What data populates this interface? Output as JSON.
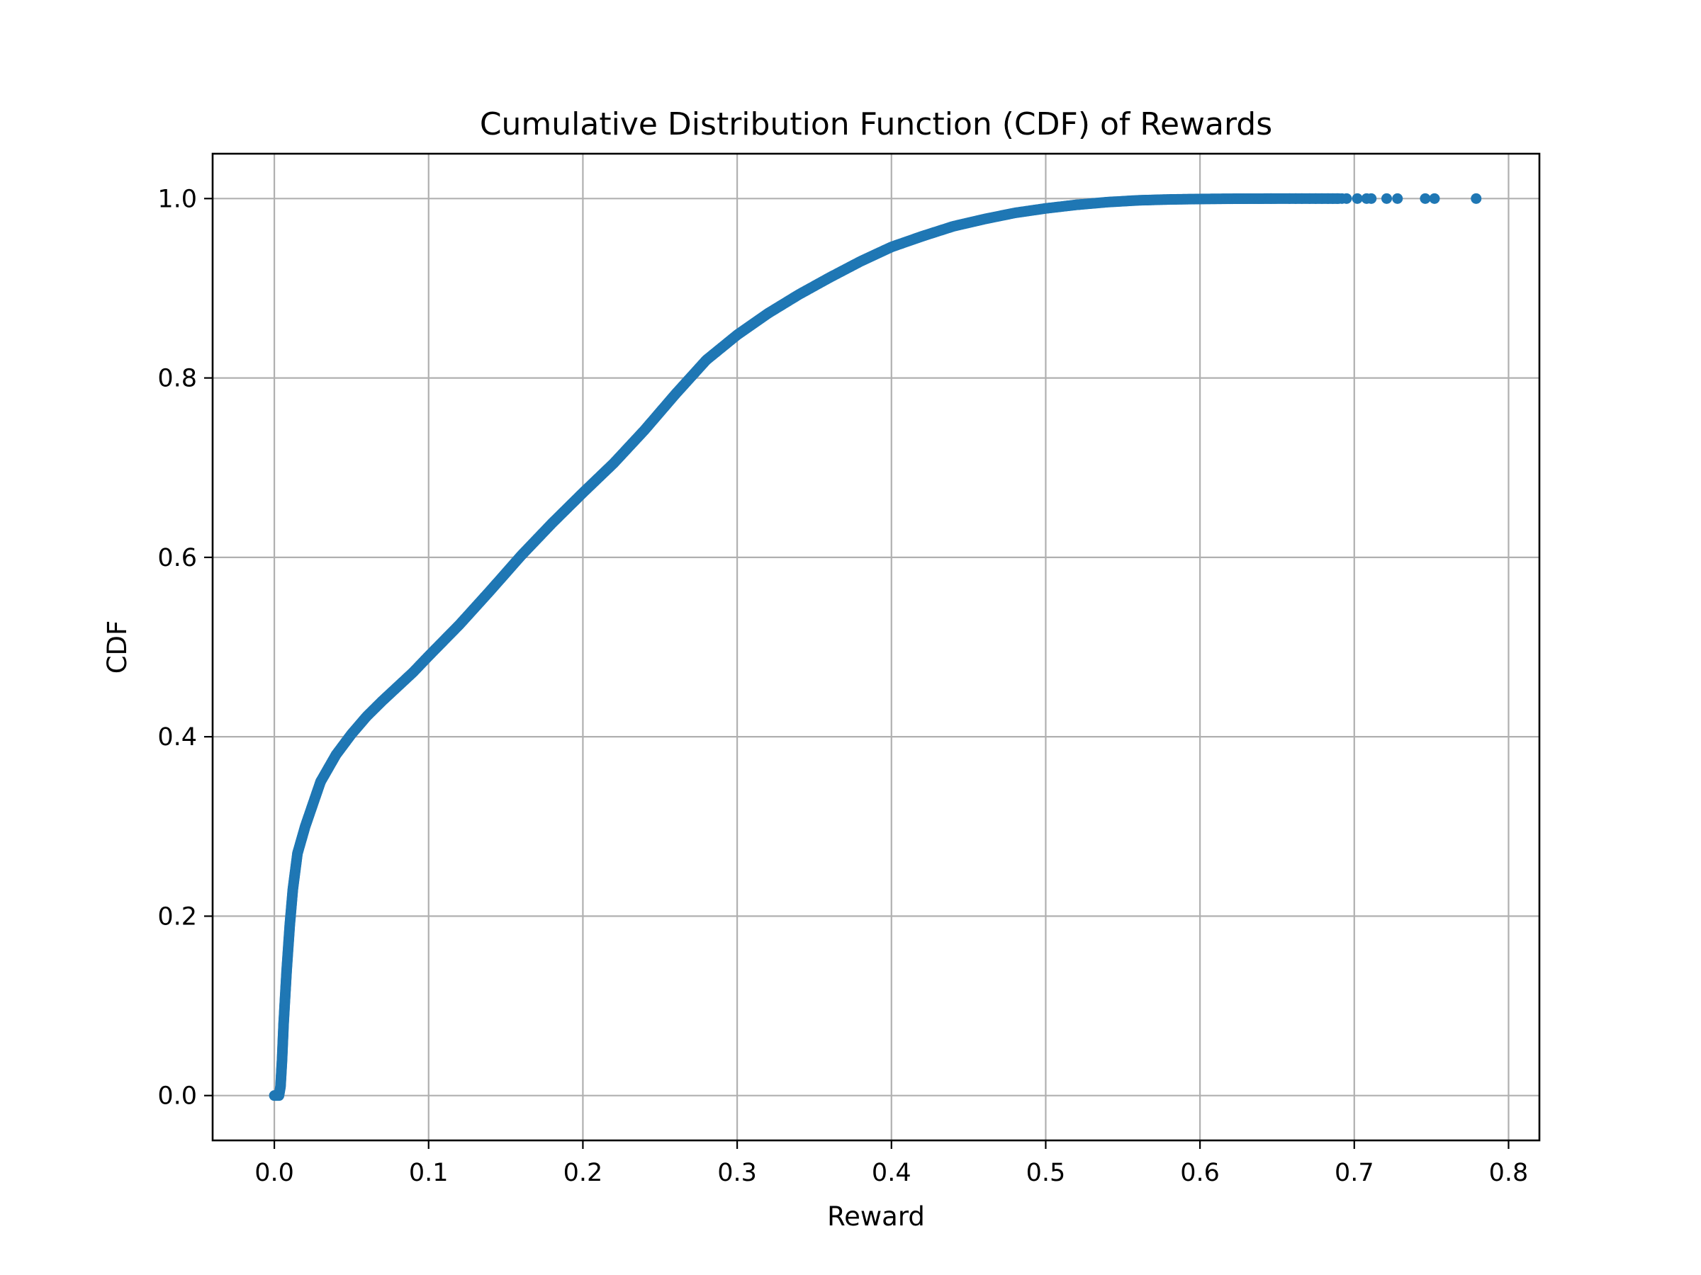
{
  "chart_data": {
    "type": "scatter",
    "title": "Cumulative Distribution Function (CDF) of Rewards",
    "xlabel": "Reward",
    "ylabel": "CDF",
    "xlim": [
      -0.04,
      0.82
    ],
    "ylim": [
      -0.05,
      1.05
    ],
    "xticks": [
      0.0,
      0.1,
      0.2,
      0.3,
      0.4,
      0.5,
      0.6,
      0.7,
      0.8
    ],
    "xtick_labels": [
      "0.0",
      "0.1",
      "0.2",
      "0.3",
      "0.4",
      "0.5",
      "0.6",
      "0.7",
      "0.8"
    ],
    "yticks": [
      0.0,
      0.2,
      0.4,
      0.6,
      0.8,
      1.0
    ],
    "ytick_labels": [
      "0.0",
      "0.2",
      "0.4",
      "0.6",
      "0.8",
      "1.0"
    ],
    "grid": true,
    "color": "#1f77b4",
    "curve": {
      "x": [
        0.0,
        0.003,
        0.004,
        0.005,
        0.006,
        0.008,
        0.01,
        0.012,
        0.015,
        0.02,
        0.025,
        0.03,
        0.035,
        0.04,
        0.05,
        0.06,
        0.07,
        0.08,
        0.09,
        0.1,
        0.12,
        0.14,
        0.16,
        0.18,
        0.2,
        0.22,
        0.24,
        0.26,
        0.28,
        0.3,
        0.32,
        0.34,
        0.36,
        0.38,
        0.4,
        0.42,
        0.44,
        0.46,
        0.48,
        0.5,
        0.52,
        0.54,
        0.56,
        0.58,
        0.6,
        0.62,
        0.64,
        0.66,
        0.68,
        0.69
      ],
      "y": [
        0.0,
        0.0,
        0.01,
        0.04,
        0.08,
        0.14,
        0.19,
        0.23,
        0.27,
        0.3,
        0.325,
        0.35,
        0.365,
        0.38,
        0.403,
        0.423,
        0.44,
        0.456,
        0.472,
        0.49,
        0.525,
        0.563,
        0.602,
        0.638,
        0.672,
        0.705,
        0.742,
        0.782,
        0.82,
        0.848,
        0.872,
        0.893,
        0.912,
        0.93,
        0.946,
        0.958,
        0.969,
        0.977,
        0.984,
        0.989,
        0.993,
        0.996,
        0.998,
        0.999,
        0.9995,
        0.9998,
        0.9999,
        1.0,
        1.0,
        1.0
      ]
    },
    "outliers": {
      "x": [
        0.646,
        0.658,
        0.662,
        0.666,
        0.671,
        0.675,
        0.679,
        0.683,
        0.686,
        0.689,
        0.692,
        0.695,
        0.702,
        0.708,
        0.711,
        0.721,
        0.728,
        0.746,
        0.752,
        0.779
      ],
      "y": [
        1.0,
        1.0,
        1.0,
        1.0,
        1.0,
        1.0,
        1.0,
        1.0,
        1.0,
        1.0,
        1.0,
        1.0,
        1.0,
        1.0,
        1.0,
        1.0,
        1.0,
        1.0,
        1.0,
        1.0
      ]
    }
  }
}
